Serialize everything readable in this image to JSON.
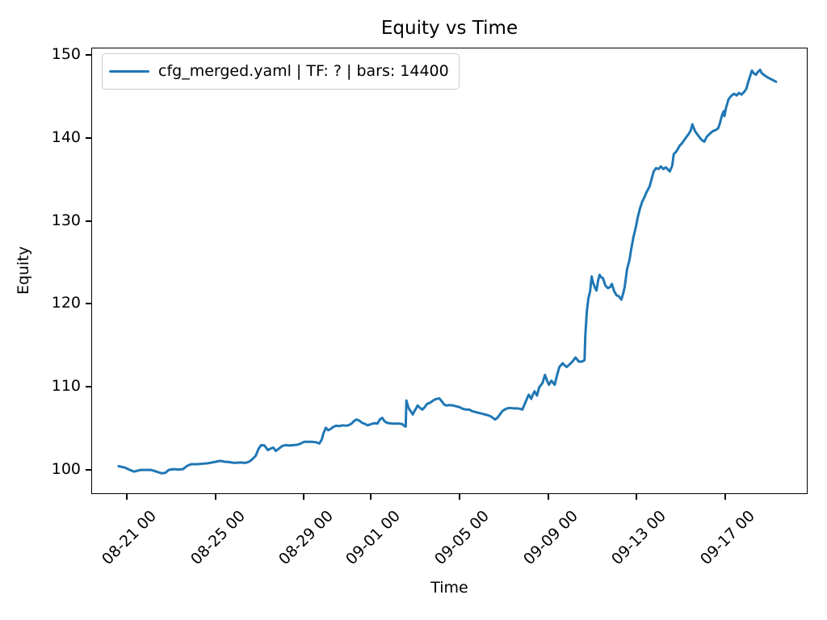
{
  "chart_data": {
    "type": "line",
    "title": "Equity vs Time",
    "xlabel": "Time",
    "ylabel": "Equity",
    "grid": false,
    "legend_position": "upper left",
    "x_unit": "days since 08-21 00:00 (tick labels are MM-DD HH)",
    "xlim": [
      -1.59,
      30.7
    ],
    "ylim": [
      97.08,
      150.88
    ],
    "y_ticks": [
      100,
      110,
      120,
      130,
      140,
      150
    ],
    "x_ticks": [
      {
        "pos": 0,
        "label": "08-21 00"
      },
      {
        "pos": 4,
        "label": "08-25 00"
      },
      {
        "pos": 8,
        "label": "08-29 00"
      },
      {
        "pos": 11,
        "label": "09-01 00"
      },
      {
        "pos": 15,
        "label": "09-05 00"
      },
      {
        "pos": 19,
        "label": "09-09 00"
      },
      {
        "pos": 23,
        "label": "09-13 00"
      },
      {
        "pos": 27,
        "label": "09-17 00"
      }
    ],
    "series": [
      {
        "name": "cfg_merged.yaml | TF: ? | bars: 14400",
        "color": "#1f77b4",
        "points": [
          [
            -0.39,
            100.35
          ],
          [
            -0.13,
            100.2
          ],
          [
            0.12,
            99.9
          ],
          [
            0.3,
            99.7
          ],
          [
            0.6,
            99.9
          ],
          [
            0.85,
            99.9
          ],
          [
            1.07,
            99.9
          ],
          [
            1.32,
            99.7
          ],
          [
            1.54,
            99.5
          ],
          [
            1.72,
            99.55
          ],
          [
            1.87,
            99.9
          ],
          [
            2.09,
            100.0
          ],
          [
            2.3,
            99.95
          ],
          [
            2.52,
            100.0
          ],
          [
            2.71,
            100.4
          ],
          [
            2.89,
            100.6
          ],
          [
            3.14,
            100.6
          ],
          [
            3.4,
            100.65
          ],
          [
            3.62,
            100.7
          ],
          [
            3.83,
            100.8
          ],
          [
            4.02,
            100.9
          ],
          [
            4.2,
            101.0
          ],
          [
            4.38,
            100.9
          ],
          [
            4.6,
            100.85
          ],
          [
            4.85,
            100.75
          ],
          [
            5.11,
            100.8
          ],
          [
            5.33,
            100.75
          ],
          [
            5.51,
            100.9
          ],
          [
            5.65,
            101.2
          ],
          [
            5.8,
            101.6
          ],
          [
            5.94,
            102.5
          ],
          [
            6.05,
            102.9
          ],
          [
            6.2,
            102.85
          ],
          [
            6.35,
            102.3
          ],
          [
            6.49,
            102.5
          ],
          [
            6.6,
            102.6
          ],
          [
            6.71,
            102.2
          ],
          [
            6.86,
            102.5
          ],
          [
            7.0,
            102.8
          ],
          [
            7.15,
            102.9
          ],
          [
            7.33,
            102.85
          ],
          [
            7.51,
            102.9
          ],
          [
            7.69,
            102.95
          ],
          [
            7.84,
            103.1
          ],
          [
            7.99,
            103.3
          ],
          [
            8.17,
            103.3
          ],
          [
            8.35,
            103.3
          ],
          [
            8.53,
            103.25
          ],
          [
            8.68,
            103.1
          ],
          [
            8.79,
            103.6
          ],
          [
            8.86,
            104.3
          ],
          [
            8.97,
            105.0
          ],
          [
            9.08,
            104.7
          ],
          [
            9.19,
            104.85
          ],
          [
            9.3,
            105.1
          ],
          [
            9.44,
            105.25
          ],
          [
            9.59,
            105.2
          ],
          [
            9.73,
            105.3
          ],
          [
            9.88,
            105.25
          ],
          [
            9.99,
            105.3
          ],
          [
            10.13,
            105.5
          ],
          [
            10.24,
            105.8
          ],
          [
            10.35,
            106.0
          ],
          [
            10.46,
            105.9
          ],
          [
            10.61,
            105.6
          ],
          [
            10.75,
            105.45
          ],
          [
            10.86,
            105.3
          ],
          [
            10.97,
            105.4
          ],
          [
            11.08,
            105.5
          ],
          [
            11.19,
            105.55
          ],
          [
            11.3,
            105.5
          ],
          [
            11.41,
            106.0
          ],
          [
            11.52,
            106.2
          ],
          [
            11.62,
            105.8
          ],
          [
            11.73,
            105.6
          ],
          [
            11.84,
            105.55
          ],
          [
            11.99,
            105.5
          ],
          [
            12.13,
            105.5
          ],
          [
            12.28,
            105.5
          ],
          [
            12.42,
            105.45
          ],
          [
            12.53,
            105.2
          ],
          [
            12.58,
            105.15
          ],
          [
            12.61,
            108.3
          ],
          [
            12.68,
            107.6
          ],
          [
            12.75,
            107.2
          ],
          [
            12.83,
            106.9
          ],
          [
            12.9,
            106.6
          ],
          [
            12.97,
            107.0
          ],
          [
            13.04,
            107.3
          ],
          [
            13.12,
            107.7
          ],
          [
            13.23,
            107.4
          ],
          [
            13.33,
            107.2
          ],
          [
            13.44,
            107.5
          ],
          [
            13.55,
            107.9
          ],
          [
            13.66,
            108.0
          ],
          [
            13.77,
            108.2
          ],
          [
            13.88,
            108.4
          ],
          [
            13.99,
            108.5
          ],
          [
            14.1,
            108.55
          ],
          [
            14.21,
            108.2
          ],
          [
            14.32,
            107.8
          ],
          [
            14.43,
            107.7
          ],
          [
            14.57,
            107.75
          ],
          [
            14.72,
            107.7
          ],
          [
            14.86,
            107.6
          ],
          [
            15.01,
            107.5
          ],
          [
            15.15,
            107.3
          ],
          [
            15.3,
            107.2
          ],
          [
            15.45,
            107.2
          ],
          [
            15.59,
            107.0
          ],
          [
            15.74,
            106.9
          ],
          [
            15.88,
            106.8
          ],
          [
            16.03,
            106.7
          ],
          [
            16.17,
            106.6
          ],
          [
            16.32,
            106.5
          ],
          [
            16.47,
            106.3
          ],
          [
            16.61,
            106.0
          ],
          [
            16.72,
            106.2
          ],
          [
            16.83,
            106.6
          ],
          [
            16.94,
            107.0
          ],
          [
            17.05,
            107.2
          ],
          [
            17.16,
            107.35
          ],
          [
            17.3,
            107.4
          ],
          [
            17.45,
            107.35
          ],
          [
            17.6,
            107.35
          ],
          [
            17.74,
            107.3
          ],
          [
            17.85,
            107.2
          ],
          [
            17.96,
            107.9
          ],
          [
            18.07,
            108.6
          ],
          [
            18.14,
            109.0
          ],
          [
            18.25,
            108.5
          ],
          [
            18.32,
            109.0
          ],
          [
            18.4,
            109.4
          ],
          [
            18.51,
            108.9
          ],
          [
            18.61,
            109.9
          ],
          [
            18.76,
            110.4
          ],
          [
            18.87,
            111.4
          ],
          [
            18.98,
            110.6
          ],
          [
            19.05,
            110.2
          ],
          [
            19.16,
            110.7
          ],
          [
            19.31,
            110.2
          ],
          [
            19.42,
            111.4
          ],
          [
            19.52,
            112.35
          ],
          [
            19.67,
            112.8
          ],
          [
            19.78,
            112.5
          ],
          [
            19.85,
            112.35
          ],
          [
            19.96,
            112.6
          ],
          [
            20.03,
            112.8
          ],
          [
            20.14,
            113.1
          ],
          [
            20.25,
            113.5
          ],
          [
            20.4,
            113.0
          ],
          [
            20.51,
            113.0
          ],
          [
            20.62,
            113.1
          ],
          [
            20.66,
            113.2
          ],
          [
            20.69,
            116.0
          ],
          [
            20.76,
            119.0
          ],
          [
            20.83,
            120.6
          ],
          [
            20.91,
            121.5
          ],
          [
            20.98,
            123.3
          ],
          [
            21.05,
            122.5
          ],
          [
            21.12,
            122.0
          ],
          [
            21.2,
            121.6
          ],
          [
            21.27,
            122.8
          ],
          [
            21.34,
            123.5
          ],
          [
            21.41,
            123.2
          ],
          [
            21.49,
            123.1
          ],
          [
            21.6,
            122.2
          ],
          [
            21.71,
            121.9
          ],
          [
            21.81,
            122.0
          ],
          [
            21.89,
            122.4
          ],
          [
            22.0,
            121.5
          ],
          [
            22.11,
            121.0
          ],
          [
            22.21,
            120.9
          ],
          [
            22.32,
            120.5
          ],
          [
            22.4,
            121.2
          ],
          [
            22.47,
            122.0
          ],
          [
            22.58,
            124.2
          ],
          [
            22.69,
            125.3
          ],
          [
            22.76,
            126.5
          ],
          [
            22.87,
            128.1
          ],
          [
            22.98,
            129.3
          ],
          [
            23.05,
            130.3
          ],
          [
            23.16,
            131.5
          ],
          [
            23.27,
            132.4
          ],
          [
            23.35,
            132.8
          ],
          [
            23.46,
            133.5
          ],
          [
            23.6,
            134.2
          ],
          [
            23.71,
            135.3
          ],
          [
            23.78,
            136.0
          ],
          [
            23.89,
            136.4
          ],
          [
            24.0,
            136.3
          ],
          [
            24.11,
            136.6
          ],
          [
            24.22,
            136.3
          ],
          [
            24.33,
            136.5
          ],
          [
            24.44,
            136.2
          ],
          [
            24.51,
            136.0
          ],
          [
            24.62,
            136.7
          ],
          [
            24.69,
            138.1
          ],
          [
            24.8,
            138.4
          ],
          [
            24.87,
            138.7
          ],
          [
            24.95,
            139.1
          ],
          [
            25.06,
            139.4
          ],
          [
            25.16,
            139.8
          ],
          [
            25.27,
            140.2
          ],
          [
            25.38,
            140.6
          ],
          [
            25.46,
            141.0
          ],
          [
            25.53,
            141.7
          ],
          [
            25.6,
            141.2
          ],
          [
            25.67,
            140.8
          ],
          [
            25.78,
            140.4
          ],
          [
            25.89,
            140.0
          ],
          [
            25.96,
            139.8
          ],
          [
            26.07,
            139.6
          ],
          [
            26.18,
            140.2
          ],
          [
            26.33,
            140.6
          ],
          [
            26.47,
            140.9
          ],
          [
            26.58,
            141.0
          ],
          [
            26.69,
            141.2
          ],
          [
            26.76,
            141.7
          ],
          [
            26.87,
            142.8
          ],
          [
            26.95,
            143.3
          ],
          [
            26.98,
            142.7
          ],
          [
            27.05,
            143.7
          ],
          [
            27.16,
            144.7
          ],
          [
            27.24,
            145.0
          ],
          [
            27.31,
            145.2
          ],
          [
            27.42,
            145.4
          ],
          [
            27.53,
            145.2
          ],
          [
            27.64,
            145.5
          ],
          [
            27.75,
            145.3
          ],
          [
            27.86,
            145.6
          ],
          [
            27.97,
            146.0
          ],
          [
            28.04,
            146.7
          ],
          [
            28.11,
            147.3
          ],
          [
            28.22,
            148.2
          ],
          [
            28.29,
            147.9
          ],
          [
            28.4,
            147.7
          ],
          [
            28.48,
            148.0
          ],
          [
            28.59,
            148.3
          ],
          [
            28.66,
            147.9
          ],
          [
            28.8,
            147.6
          ],
          [
            28.95,
            147.35
          ],
          [
            29.13,
            147.1
          ],
          [
            29.31,
            146.85
          ]
        ]
      }
    ]
  }
}
